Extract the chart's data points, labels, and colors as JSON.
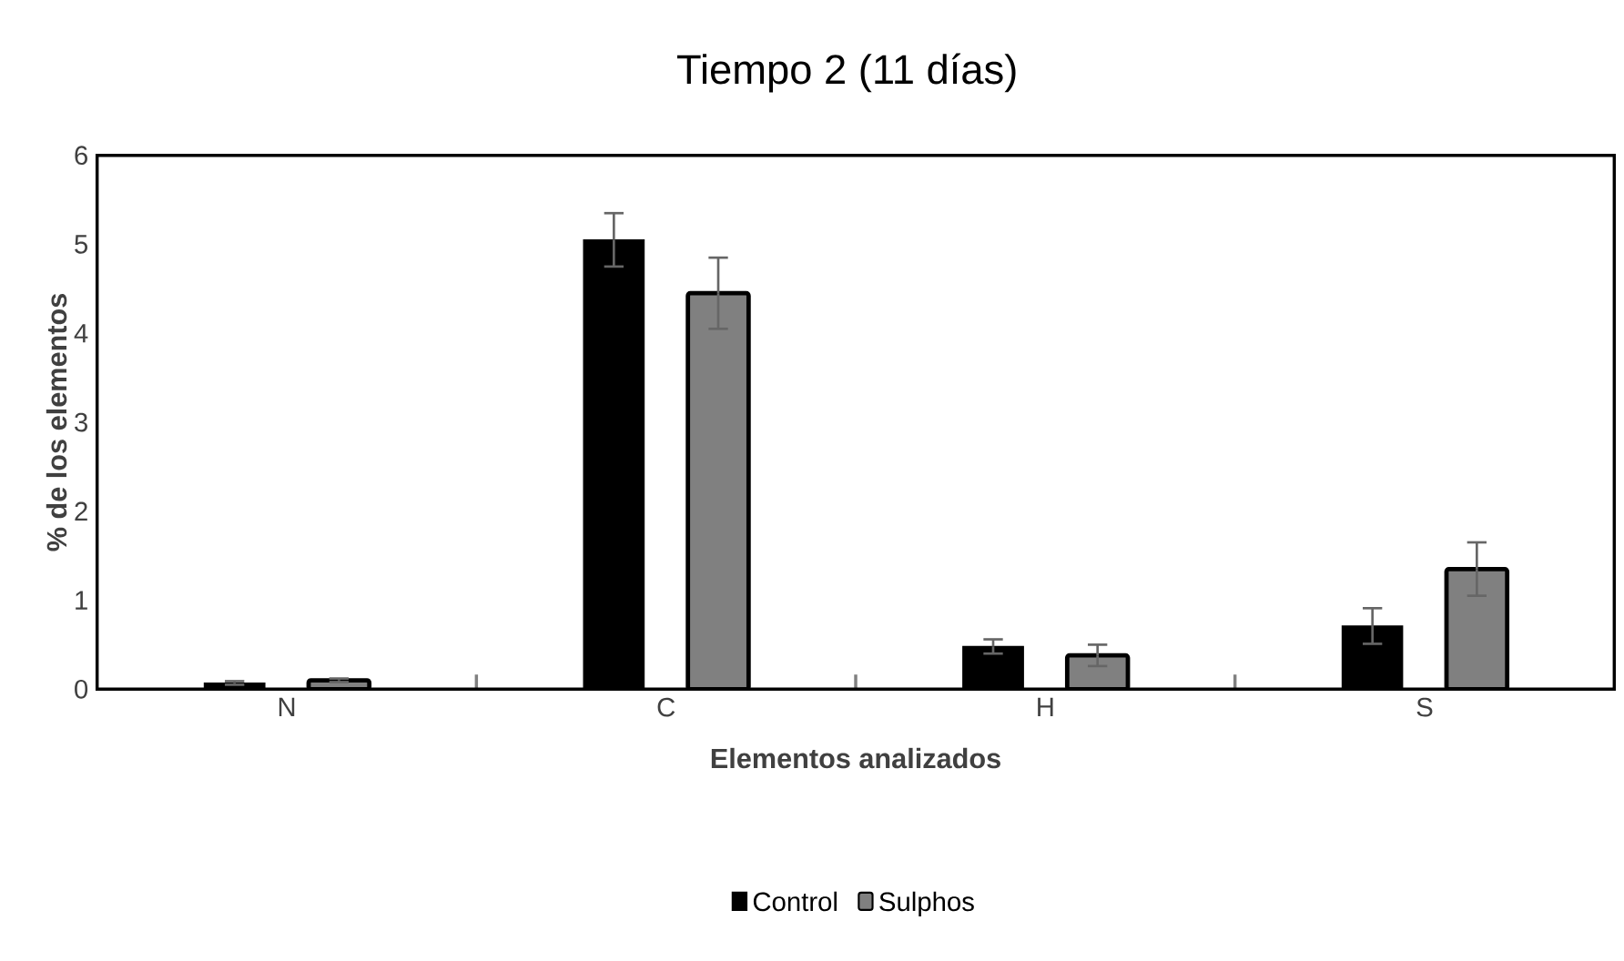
{
  "chart_data": {
    "type": "bar",
    "title": "Tiempo 2 (11 días)",
    "xlabel": "Elementos analizados",
    "ylabel": "% de los elementos",
    "categories": [
      "N",
      "C",
      "H",
      "S"
    ],
    "series": [
      {
        "name": "Control",
        "color": "#000000",
        "values": [
          0.07,
          5.05,
          0.48,
          0.71
        ],
        "errors": [
          0.02,
          0.3,
          0.08,
          0.2
        ]
      },
      {
        "name": "Sulphos",
        "color": "#808080",
        "values": [
          0.1,
          4.45,
          0.38,
          1.35
        ],
        "errors": [
          0.02,
          0.4,
          0.12,
          0.3
        ]
      }
    ],
    "ylim": [
      0,
      6
    ],
    "yticks": [
      0,
      1,
      2,
      3,
      4,
      5,
      6
    ],
    "grid": false,
    "legend": "bottom"
  }
}
